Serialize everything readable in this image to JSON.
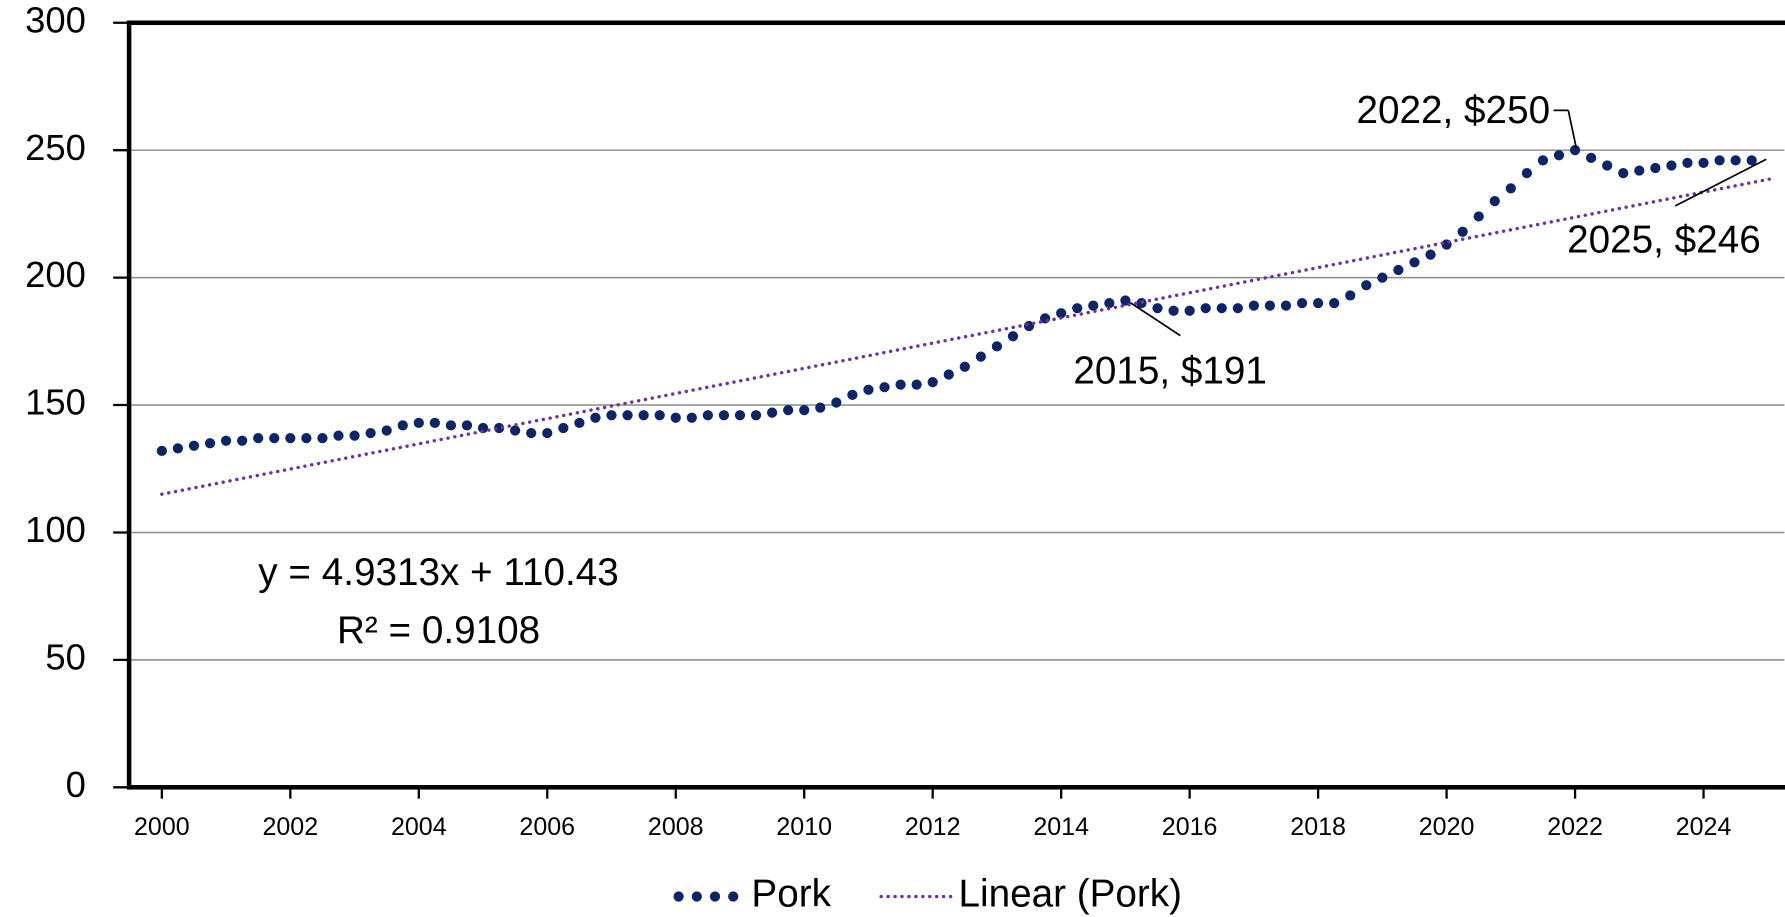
{
  "chart_data": {
    "type": "scatter",
    "series": [
      {
        "name": "Pork",
        "color": "#0b2566",
        "x": [
          2000,
          2000.25,
          2000.5,
          2000.75,
          2001,
          2001.25,
          2001.5,
          2001.75,
          2002,
          2002.25,
          2002.5,
          2002.75,
          2003,
          2003.25,
          2003.5,
          2003.75,
          2004,
          2004.25,
          2004.5,
          2004.75,
          2005,
          2005.25,
          2005.5,
          2005.75,
          2006,
          2006.25,
          2006.5,
          2006.75,
          2007,
          2007.25,
          2007.5,
          2007.75,
          2008,
          2008.25,
          2008.5,
          2008.75,
          2009,
          2009.25,
          2009.5,
          2009.75,
          2010,
          2010.25,
          2010.5,
          2010.75,
          2011,
          2011.25,
          2011.5,
          2011.75,
          2012,
          2012.25,
          2012.5,
          2012.75,
          2013,
          2013.25,
          2013.5,
          2013.75,
          2014,
          2014.25,
          2014.5,
          2014.75,
          2015,
          2015.25,
          2015.5,
          2015.75,
          2016,
          2016.25,
          2016.5,
          2016.75,
          2017,
          2017.25,
          2017.5,
          2017.75,
          2018,
          2018.25,
          2018.5,
          2018.75,
          2019,
          2019.25,
          2019.5,
          2019.75,
          2020,
          2020.25,
          2020.5,
          2020.75,
          2021,
          2021.25,
          2021.5,
          2021.75,
          2022,
          2022.25,
          2022.5,
          2022.75,
          2023,
          2023.25,
          2023.5,
          2023.75,
          2024,
          2024.25,
          2024.5,
          2024.75
        ],
        "values": [
          132,
          133,
          134,
          135,
          136,
          136,
          137,
          137,
          137,
          137,
          137,
          138,
          138,
          139,
          140,
          142,
          143,
          143,
          142,
          142,
          141,
          141,
          140,
          139,
          139,
          141,
          143,
          145,
          146,
          146,
          146,
          146,
          145,
          145,
          146,
          146,
          146,
          146,
          147,
          148,
          148,
          149,
          151,
          154,
          156,
          157,
          158,
          158,
          159,
          162,
          165,
          169,
          173,
          177,
          181,
          184,
          186,
          188,
          189,
          190,
          191,
          190,
          188,
          187,
          187,
          188,
          188,
          188,
          189,
          189,
          189,
          190,
          190,
          190,
          193,
          197,
          200,
          203,
          206,
          209,
          213,
          218,
          224,
          230,
          235,
          241,
          246,
          248,
          250,
          247,
          244,
          241,
          242,
          243,
          244,
          245,
          245,
          246,
          246,
          246
        ]
      },
      {
        "name": "Linear (Pork)",
        "color": "#7030a0",
        "x": [
          2000,
          2025.1
        ],
        "values": [
          115,
          239
        ]
      }
    ],
    "xlim": [
      1999.49,
      2025.26
    ],
    "xticks": [
      2000,
      2002,
      2004,
      2006,
      2008,
      2010,
      2012,
      2014,
      2016,
      2018,
      2020,
      2022,
      2024
    ],
    "ylim": [
      0,
      300
    ],
    "yticks": [
      0,
      50,
      100,
      150,
      200,
      250,
      300
    ],
    "grid": true,
    "annotations": [
      "2022, $250",
      "2015, $191",
      "2025, $246"
    ],
    "trendline_equation": "y = 4.9313x + 110.43",
    "trendline_r2": "R² = 0.9108",
    "legend": "bottom"
  }
}
